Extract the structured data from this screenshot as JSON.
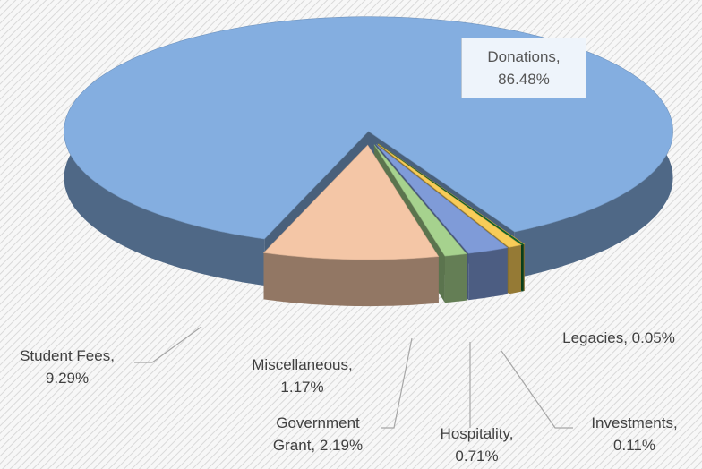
{
  "chart_data": {
    "type": "pie3d",
    "categories": [
      "Donations",
      "Legacies",
      "Investments",
      "Hospitality",
      "Government Grant",
      "Miscellaneous",
      "Student Fees"
    ],
    "values": [
      86.48,
      0.05,
      0.11,
      0.71,
      2.19,
      1.17,
      9.29
    ],
    "value_labels": [
      "Donations, 86.48%",
      "Legacies, 0.05%",
      "Investments, 0.11%",
      "Hospitality, 0.71%",
      "Government Grant, 2.19%",
      "Miscellaneous, 1.17%",
      "Student Fees, 9.29%"
    ],
    "colors": [
      "#84aee0",
      "#d8b450",
      "#0e6a30",
      "#f8cc58",
      "#7f9bd8",
      "#a6d28e",
      "#f4c6a6"
    ]
  }
}
